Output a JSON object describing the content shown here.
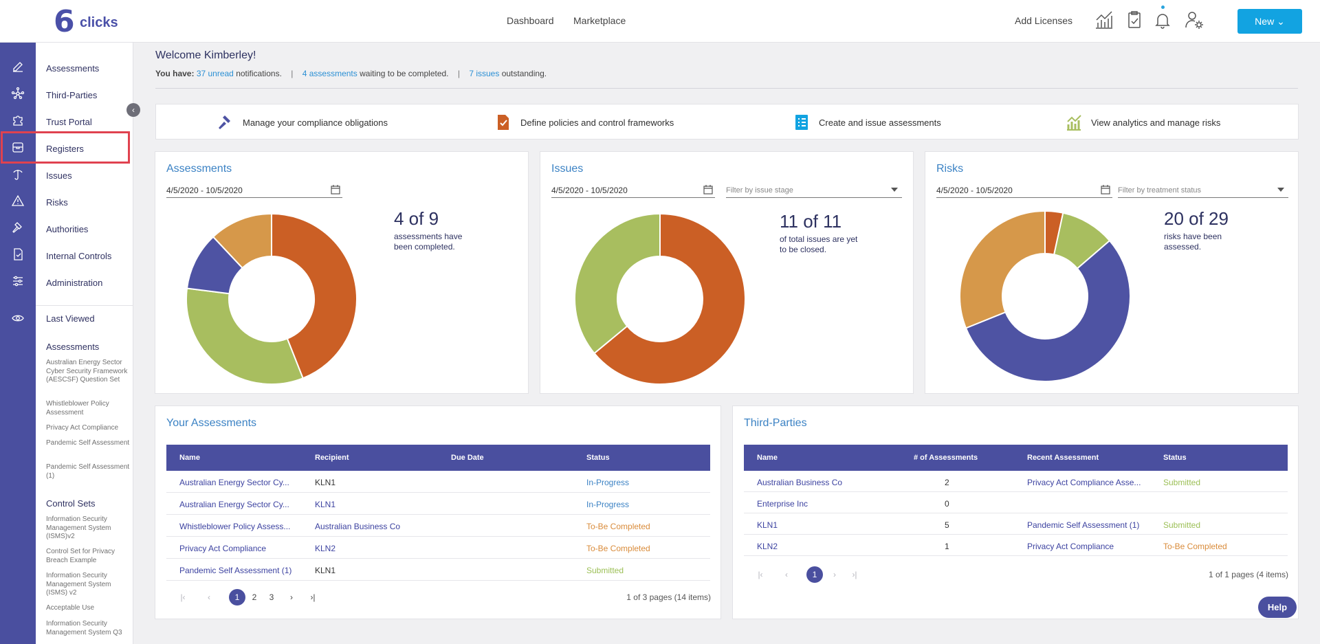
{
  "header": {
    "logo_number": "6",
    "logo_text": "clicks",
    "nav": [
      "Dashboard",
      "Marketplace"
    ],
    "add_licenses": "Add Licenses",
    "new_button": "New ⌄",
    "icons": [
      "analytics-icon",
      "clipboard-check-icon",
      "bell-icon",
      "user-settings-icon"
    ]
  },
  "rail_icons": [
    "edit-icon",
    "network-icon",
    "puzzle-icon",
    "registers-icon",
    "umbrella-icon",
    "warning-icon",
    "gavel-icon",
    "checklist-icon",
    "sliders-icon",
    "eye-icon"
  ],
  "sidebar": {
    "items": [
      "Assessments",
      "Third-Parties",
      "Trust Portal",
      "Registers",
      "Issues",
      "Risks",
      "Authorities",
      "Internal Controls",
      "Administration"
    ],
    "last_viewed": "Last Viewed",
    "recent_assessments_title": "Assessments",
    "recent_assessments": [
      "Australian Energy Sector Cyber Security Framework (AESCSF) Question Set",
      "Whistleblower Policy Assessment",
      "Privacy Act Compliance",
      "Pandemic Self Assessment",
      "Pandemic Self Assessment (1)"
    ],
    "control_sets_title": "Control Sets",
    "control_sets": [
      "Information Security Management System (ISMS)v2",
      "Control Set for Privacy Breach Example",
      "Information Security Management System (ISMS) v2",
      "Acceptable Use",
      "Information Security Management System Q3"
    ]
  },
  "welcome": {
    "title": "Welcome Kimberley!",
    "you_have": "You have:",
    "notif_link": "37 unread",
    "notif_text": " notifications.",
    "sep": "|",
    "assess_link": "4 assessments",
    "assess_text": " waiting to be completed.",
    "issues_link": "7 issues",
    "issues_text": " outstanding."
  },
  "quicklinks": [
    "Manage your compliance obligations",
    "Define policies and control frameworks",
    "Create and issue assessments",
    "View analytics and manage risks"
  ],
  "cards": {
    "assessments": {
      "title": "Assessments",
      "date": "4/5/2020 - 10/5/2020",
      "big": "4 of 9",
      "sub1": "assessments have",
      "sub2": "been completed."
    },
    "issues": {
      "title": "Issues",
      "date": "4/5/2020 - 10/5/2020",
      "filter": "Filter by issue stage",
      "big": "11 of 11",
      "sub1": "of total issues are yet",
      "sub2": "to be closed."
    },
    "risks": {
      "title": "Risks",
      "date": "4/5/2020 - 10/5/2020",
      "filter": "Filter by treatment status",
      "big": "20 of 29",
      "sub1": "risks have been",
      "sub2": "assessed."
    }
  },
  "colors": {
    "orange": "#cb5f25",
    "green": "#a8be5f",
    "purple": "#4e53a3",
    "tan": "#d6984a",
    "accent": "#12a3e1"
  },
  "chart_data": [
    {
      "type": "pie",
      "name": "assessments",
      "slices": [
        {
          "color": "#cb5f25",
          "value": 44
        },
        {
          "color": "#a8be5f",
          "value": 33
        },
        {
          "color": "#4e53a3",
          "value": 11
        },
        {
          "color": "#d6984a",
          "value": 12
        }
      ]
    },
    {
      "type": "pie",
      "name": "issues",
      "slices": [
        {
          "color": "#cb5f25",
          "value": 64
        },
        {
          "color": "#a8be5f",
          "value": 36
        }
      ]
    },
    {
      "type": "pie",
      "name": "risks",
      "slices": [
        {
          "color": "#cb5f25",
          "value": 3.4
        },
        {
          "color": "#a8be5f",
          "value": 10.3
        },
        {
          "color": "#4e53a3",
          "value": 55.2
        },
        {
          "color": "#d6984a",
          "value": 31.1
        }
      ]
    }
  ],
  "your_assessments": {
    "title": "Your Assessments",
    "columns": [
      "Name",
      "Recipient",
      "Due Date",
      "Status"
    ],
    "rows": [
      {
        "name": "Australian Energy Sector Cy...",
        "recipient": "KLN1",
        "recipient_link": false,
        "due": "",
        "status": "In-Progress",
        "status_type": "ip"
      },
      {
        "name": "Australian Energy Sector Cy...",
        "recipient": "KLN1",
        "recipient_link": true,
        "due": "",
        "status": "In-Progress",
        "status_type": "ip"
      },
      {
        "name": "Whistleblower Policy Assess...",
        "recipient": "Australian Business Co",
        "recipient_link": true,
        "due": "",
        "status": "To-Be Completed",
        "status_type": "tbc"
      },
      {
        "name": "Privacy Act Compliance",
        "recipient": "KLN2",
        "recipient_link": true,
        "due": "",
        "status": "To-Be Completed",
        "status_type": "tbc"
      },
      {
        "name": "Pandemic Self Assessment (1)",
        "recipient": "KLN1",
        "recipient_link": false,
        "due": "",
        "status": "Submitted",
        "status_type": "sub"
      }
    ],
    "pages": [
      "1",
      "2",
      "3"
    ],
    "page_info": "1 of 3 pages (14 items)"
  },
  "third_parties": {
    "title": "Third-Parties",
    "columns": [
      "Name",
      "# of Assessments",
      "Recent Assessment",
      "Status"
    ],
    "rows": [
      {
        "name": "Australian Business Co",
        "count": "2",
        "recent": "Privacy Act Compliance Asse...",
        "status": "Submitted",
        "status_type": "sub"
      },
      {
        "name": "Enterprise Inc",
        "count": "0",
        "recent": "",
        "status": "",
        "status_type": ""
      },
      {
        "name": "KLN1",
        "count": "5",
        "recent": "Pandemic Self Assessment (1)",
        "status": "Submitted",
        "status_type": "sub"
      },
      {
        "name": "KLN2",
        "count": "1",
        "recent": "Privacy Act Compliance",
        "status": "To-Be Completed",
        "status_type": "tbc"
      }
    ],
    "pages": [
      "1"
    ],
    "page_info": "1 of 1 pages (4 items)"
  },
  "pager_symbols": {
    "first": "|‹",
    "prev": "‹",
    "next": "›",
    "last": "›|"
  },
  "help_label": "Help",
  "collapse_symbol": "‹"
}
